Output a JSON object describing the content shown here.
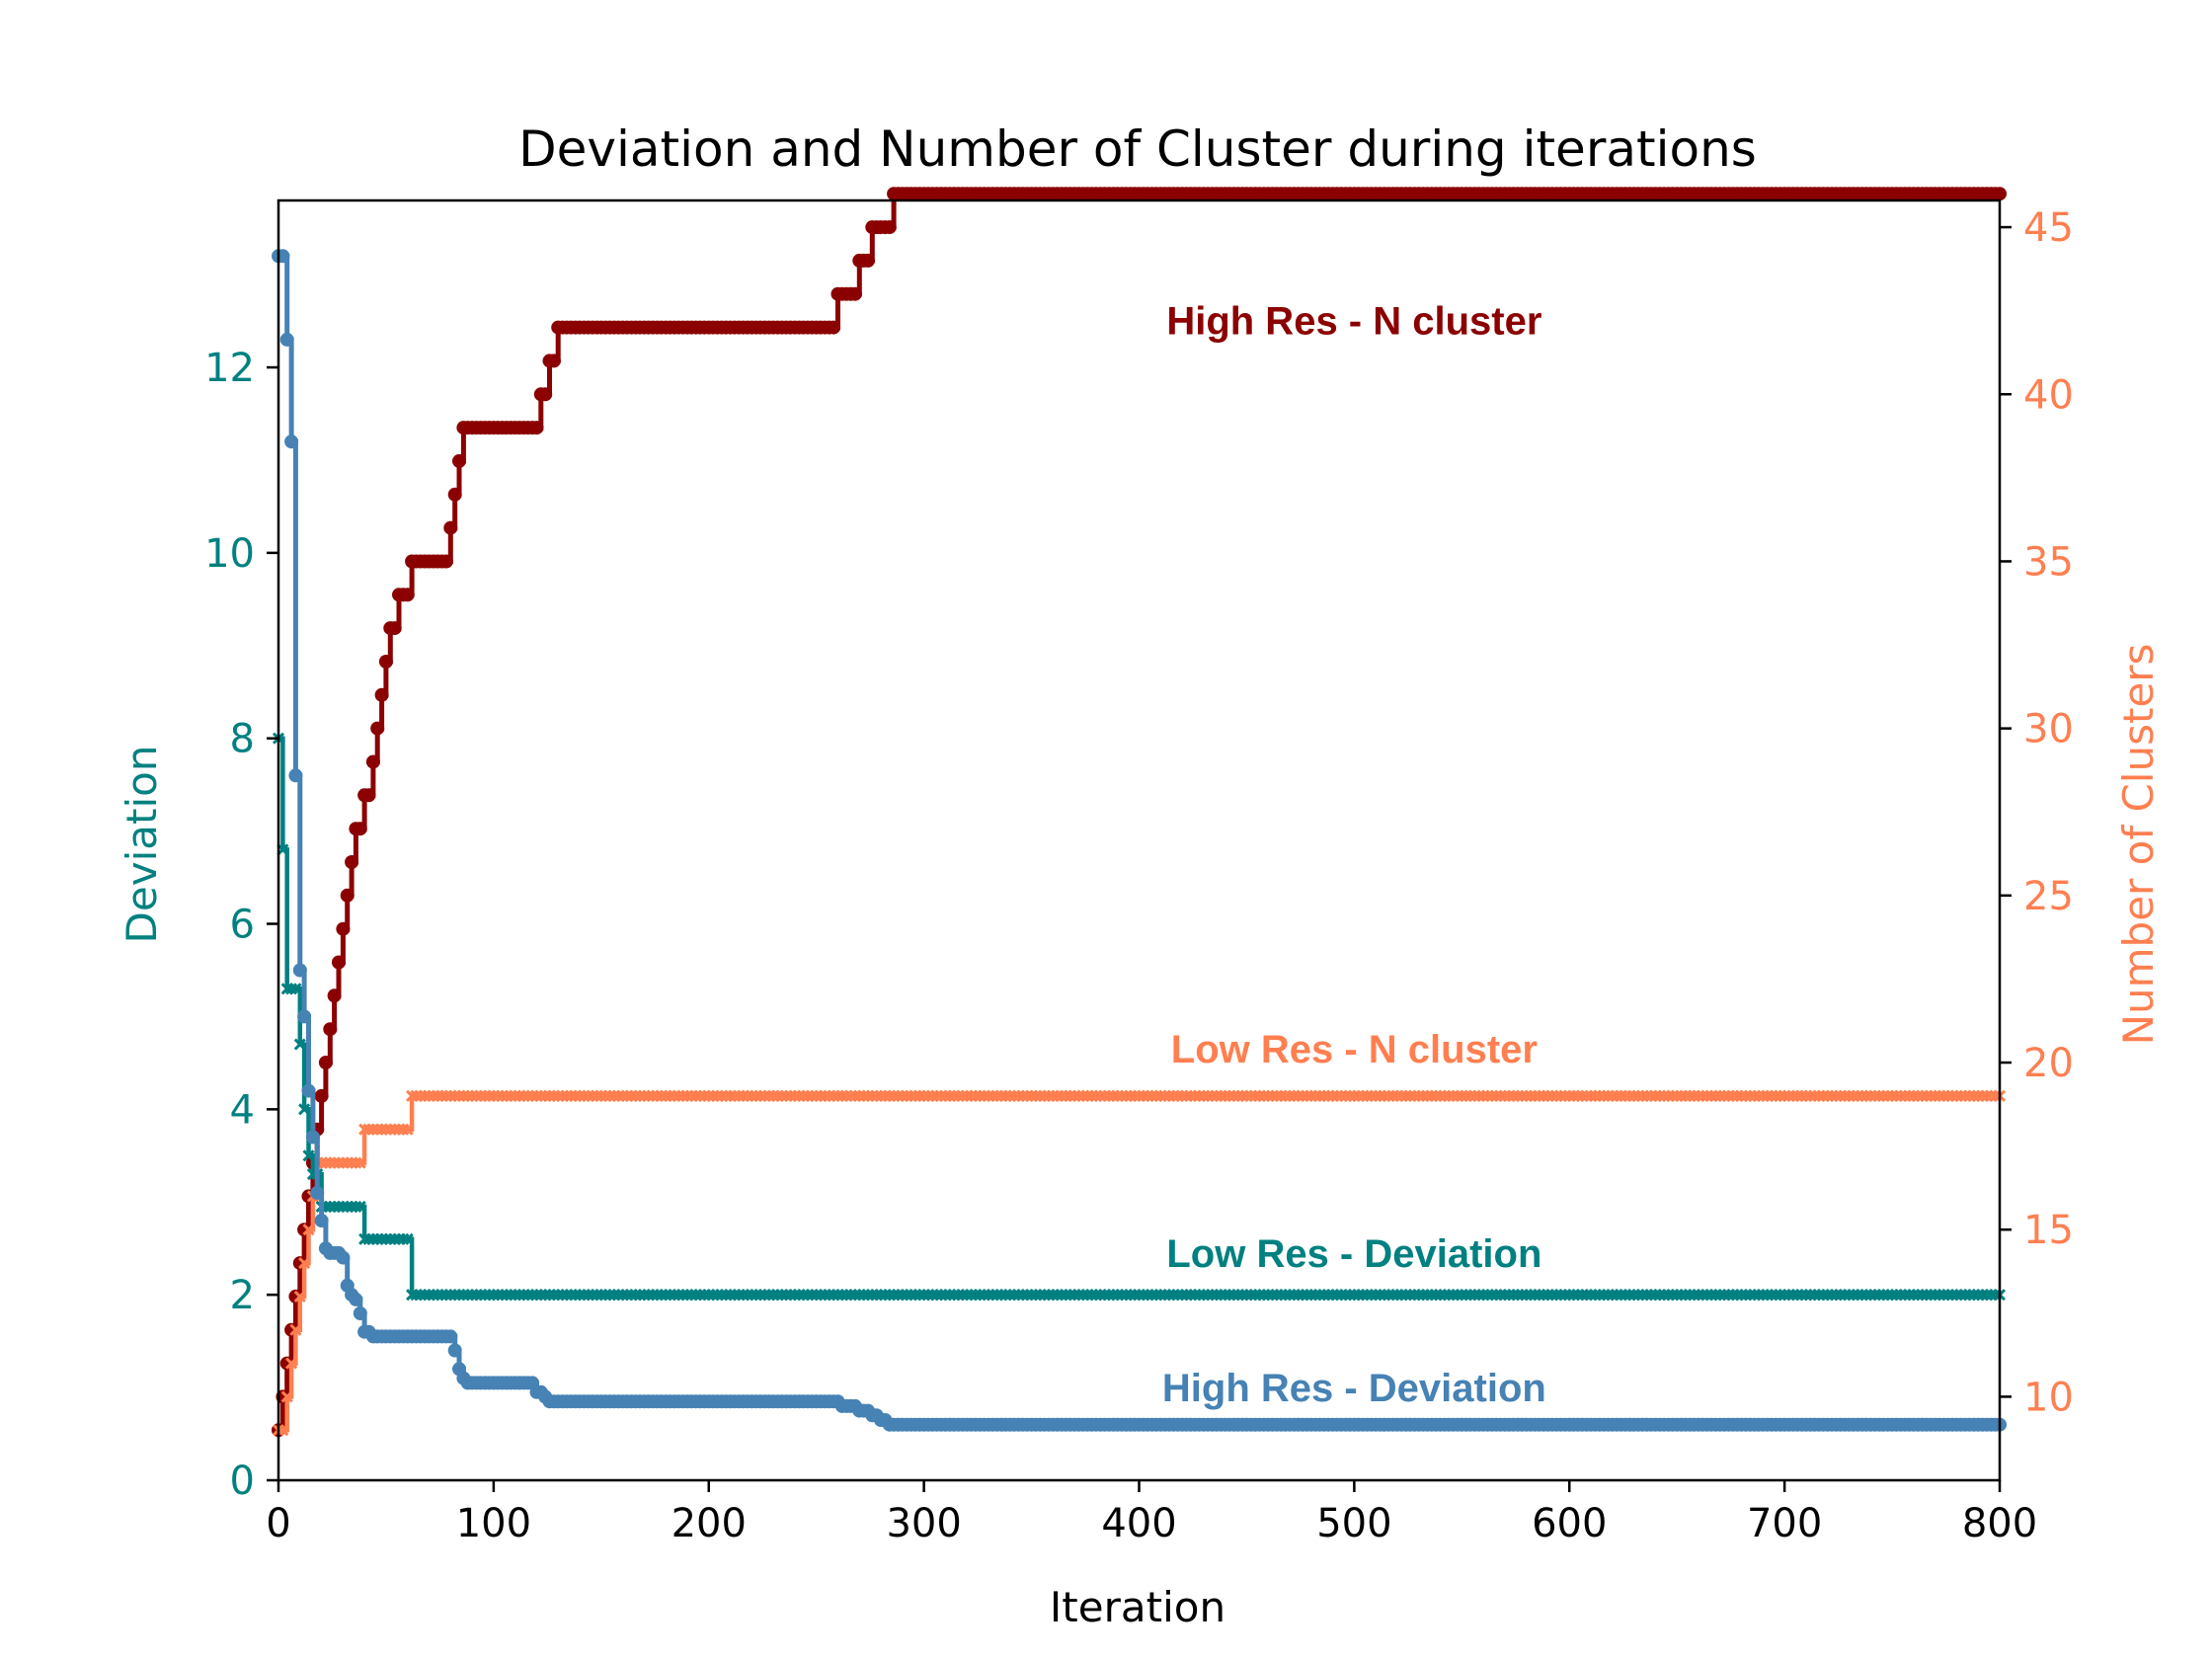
{
  "chart_data": {
    "type": "line",
    "title": "Deviation and Number of Cluster during iterations",
    "xlabel": "Iteration",
    "ylabel_left": "Deviation",
    "ylabel_right": "Number of Clusters",
    "xlim": [
      0,
      800
    ],
    "ylim_left": [
      0,
      13.8
    ],
    "ylim_right": [
      7.5,
      45.8
    ],
    "xticks": [
      0,
      100,
      200,
      300,
      400,
      500,
      600,
      700,
      800
    ],
    "yticks_left": [
      0,
      2,
      4,
      6,
      8,
      10,
      12
    ],
    "yticks_right": [
      10,
      15,
      20,
      25,
      30,
      35,
      40,
      45
    ],
    "grid": false,
    "legend": "none",
    "colors": {
      "left_axis": "#008080",
      "right_axis": "#FF7F50"
    },
    "series": [
      {
        "name": "High Res - N cluster",
        "axis": "right",
        "color": "#8B0000",
        "marker": "dot",
        "points": [
          [
            0,
            9
          ],
          [
            2,
            10
          ],
          [
            4,
            11
          ],
          [
            6,
            12
          ],
          [
            8,
            13
          ],
          [
            10,
            14
          ],
          [
            12,
            15
          ],
          [
            14,
            16
          ],
          [
            16,
            17
          ],
          [
            18,
            18
          ],
          [
            20,
            19
          ],
          [
            22,
            20
          ],
          [
            24,
            21
          ],
          [
            26,
            22
          ],
          [
            28,
            23
          ],
          [
            30,
            24
          ],
          [
            32,
            25
          ],
          [
            34,
            26
          ],
          [
            36,
            27
          ],
          [
            38,
            27
          ],
          [
            40,
            28
          ],
          [
            42,
            28
          ],
          [
            44,
            29
          ],
          [
            46,
            30
          ],
          [
            48,
            31
          ],
          [
            50,
            32
          ],
          [
            52,
            33
          ],
          [
            54,
            33
          ],
          [
            56,
            34
          ],
          [
            60,
            34
          ],
          [
            62,
            35
          ],
          [
            64,
            35
          ],
          [
            78,
            35
          ],
          [
            80,
            36
          ],
          [
            82,
            37
          ],
          [
            84,
            38
          ],
          [
            86,
            39
          ],
          [
            100,
            39
          ],
          [
            120,
            39
          ],
          [
            122,
            40
          ],
          [
            126,
            41
          ],
          [
            130,
            42
          ],
          [
            150,
            42
          ],
          [
            200,
            42
          ],
          [
            250,
            42
          ],
          [
            258,
            42
          ],
          [
            260,
            43
          ],
          [
            268,
            43
          ],
          [
            270,
            44
          ],
          [
            274,
            44
          ],
          [
            276,
            45
          ],
          [
            282,
            45
          ],
          [
            286,
            46
          ],
          [
            800,
            46
          ]
        ]
      },
      {
        "name": "Low Res - N cluster",
        "axis": "right",
        "color": "#FF7F50",
        "marker": "x",
        "points": [
          [
            0,
            9
          ],
          [
            4,
            10
          ],
          [
            6,
            11
          ],
          [
            8,
            12
          ],
          [
            10,
            13
          ],
          [
            12,
            14
          ],
          [
            14,
            15
          ],
          [
            16,
            16
          ],
          [
            18,
            17
          ],
          [
            38,
            17
          ],
          [
            40,
            18
          ],
          [
            60,
            18
          ],
          [
            62,
            19
          ],
          [
            800,
            19
          ]
        ]
      },
      {
        "name": "Low Res - Deviation",
        "axis": "left",
        "color": "#008080",
        "marker": "x",
        "points": [
          [
            0,
            8.0
          ],
          [
            2,
            6.8
          ],
          [
            4,
            5.3
          ],
          [
            8,
            5.3
          ],
          [
            10,
            4.7
          ],
          [
            12,
            4.0
          ],
          [
            14,
            3.5
          ],
          [
            16,
            3.3
          ],
          [
            20,
            2.95
          ],
          [
            38,
            2.95
          ],
          [
            40,
            2.6
          ],
          [
            60,
            2.6
          ],
          [
            62,
            2.0
          ],
          [
            800,
            2.0
          ]
        ]
      },
      {
        "name": "High Res - Deviation",
        "axis": "left",
        "color": "#4682B4",
        "marker": "dot",
        "points": [
          [
            0,
            13.2
          ],
          [
            2,
            13.2
          ],
          [
            4,
            12.3
          ],
          [
            6,
            11.2
          ],
          [
            8,
            7.6
          ],
          [
            10,
            5.5
          ],
          [
            12,
            5.0
          ],
          [
            14,
            4.2
          ],
          [
            16,
            3.7
          ],
          [
            18,
            3.1
          ],
          [
            20,
            2.8
          ],
          [
            22,
            2.5
          ],
          [
            24,
            2.45
          ],
          [
            28,
            2.45
          ],
          [
            30,
            2.4
          ],
          [
            32,
            2.1
          ],
          [
            34,
            2.0
          ],
          [
            36,
            1.95
          ],
          [
            38,
            1.8
          ],
          [
            40,
            1.6
          ],
          [
            44,
            1.55
          ],
          [
            80,
            1.55
          ],
          [
            82,
            1.4
          ],
          [
            84,
            1.2
          ],
          [
            86,
            1.1
          ],
          [
            88,
            1.05
          ],
          [
            118,
            1.05
          ],
          [
            120,
            0.95
          ],
          [
            124,
            0.9
          ],
          [
            126,
            0.85
          ],
          [
            258,
            0.85
          ],
          [
            262,
            0.8
          ],
          [
            270,
            0.75
          ],
          [
            276,
            0.7
          ],
          [
            280,
            0.65
          ],
          [
            284,
            0.6
          ],
          [
            800,
            0.6
          ]
        ]
      }
    ],
    "annotations": [
      {
        "text": "High Res - N cluster",
        "x": 500,
        "y": 41.8,
        "axis": "right",
        "color": "#8B0000"
      },
      {
        "text": "Low Res - N cluster",
        "x": 500,
        "y": 20.0,
        "axis": "right",
        "color": "#FF7F50"
      },
      {
        "text": "Low Res - Deviation",
        "x": 500,
        "y": 2.3,
        "axis": "left",
        "color": "#008080"
      },
      {
        "text": "High Res - Deviation",
        "x": 500,
        "y": 0.85,
        "axis": "left",
        "color": "#4682B4"
      }
    ]
  }
}
